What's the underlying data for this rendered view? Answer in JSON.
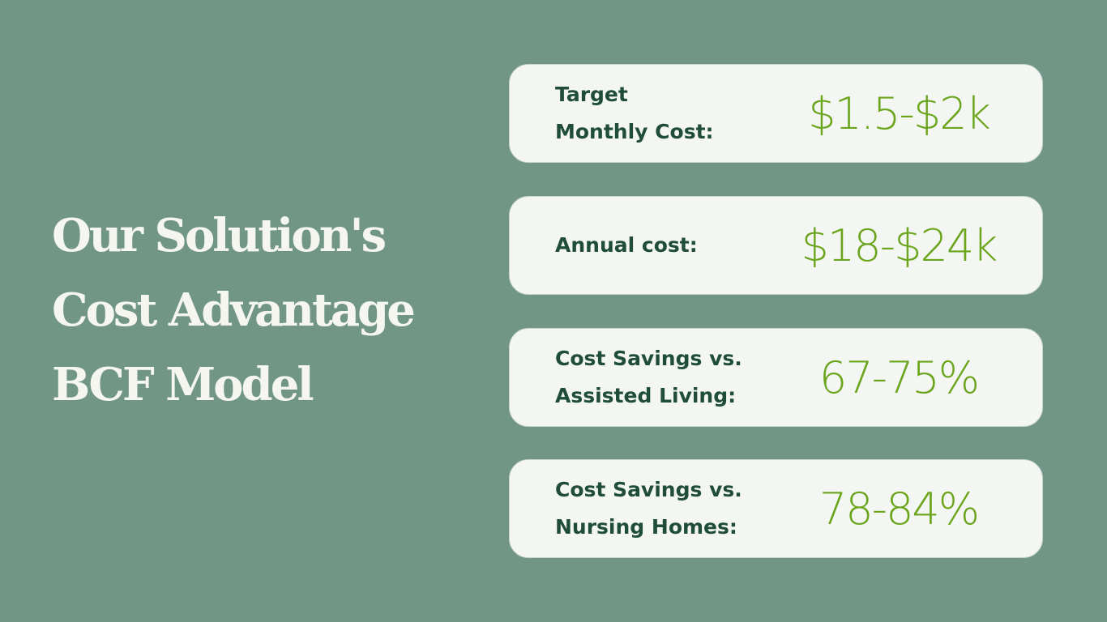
{
  "title": {
    "lines": [
      "Our Solution's",
      "Cost Advantage",
      "BCF Model"
    ]
  },
  "cards": [
    {
      "label": [
        "Target",
        "Monthly Cost:"
      ],
      "value": "$1.5-$2k"
    },
    {
      "label": [
        "Annual cost:"
      ],
      "value": "$18-$24k"
    },
    {
      "label": [
        "Cost Savings vs.",
        "Assisted Living:"
      ],
      "value": "67-75%"
    },
    {
      "label": [
        "Cost Savings vs.",
        "Nursing Homes:"
      ],
      "value": "78-84%"
    }
  ]
}
